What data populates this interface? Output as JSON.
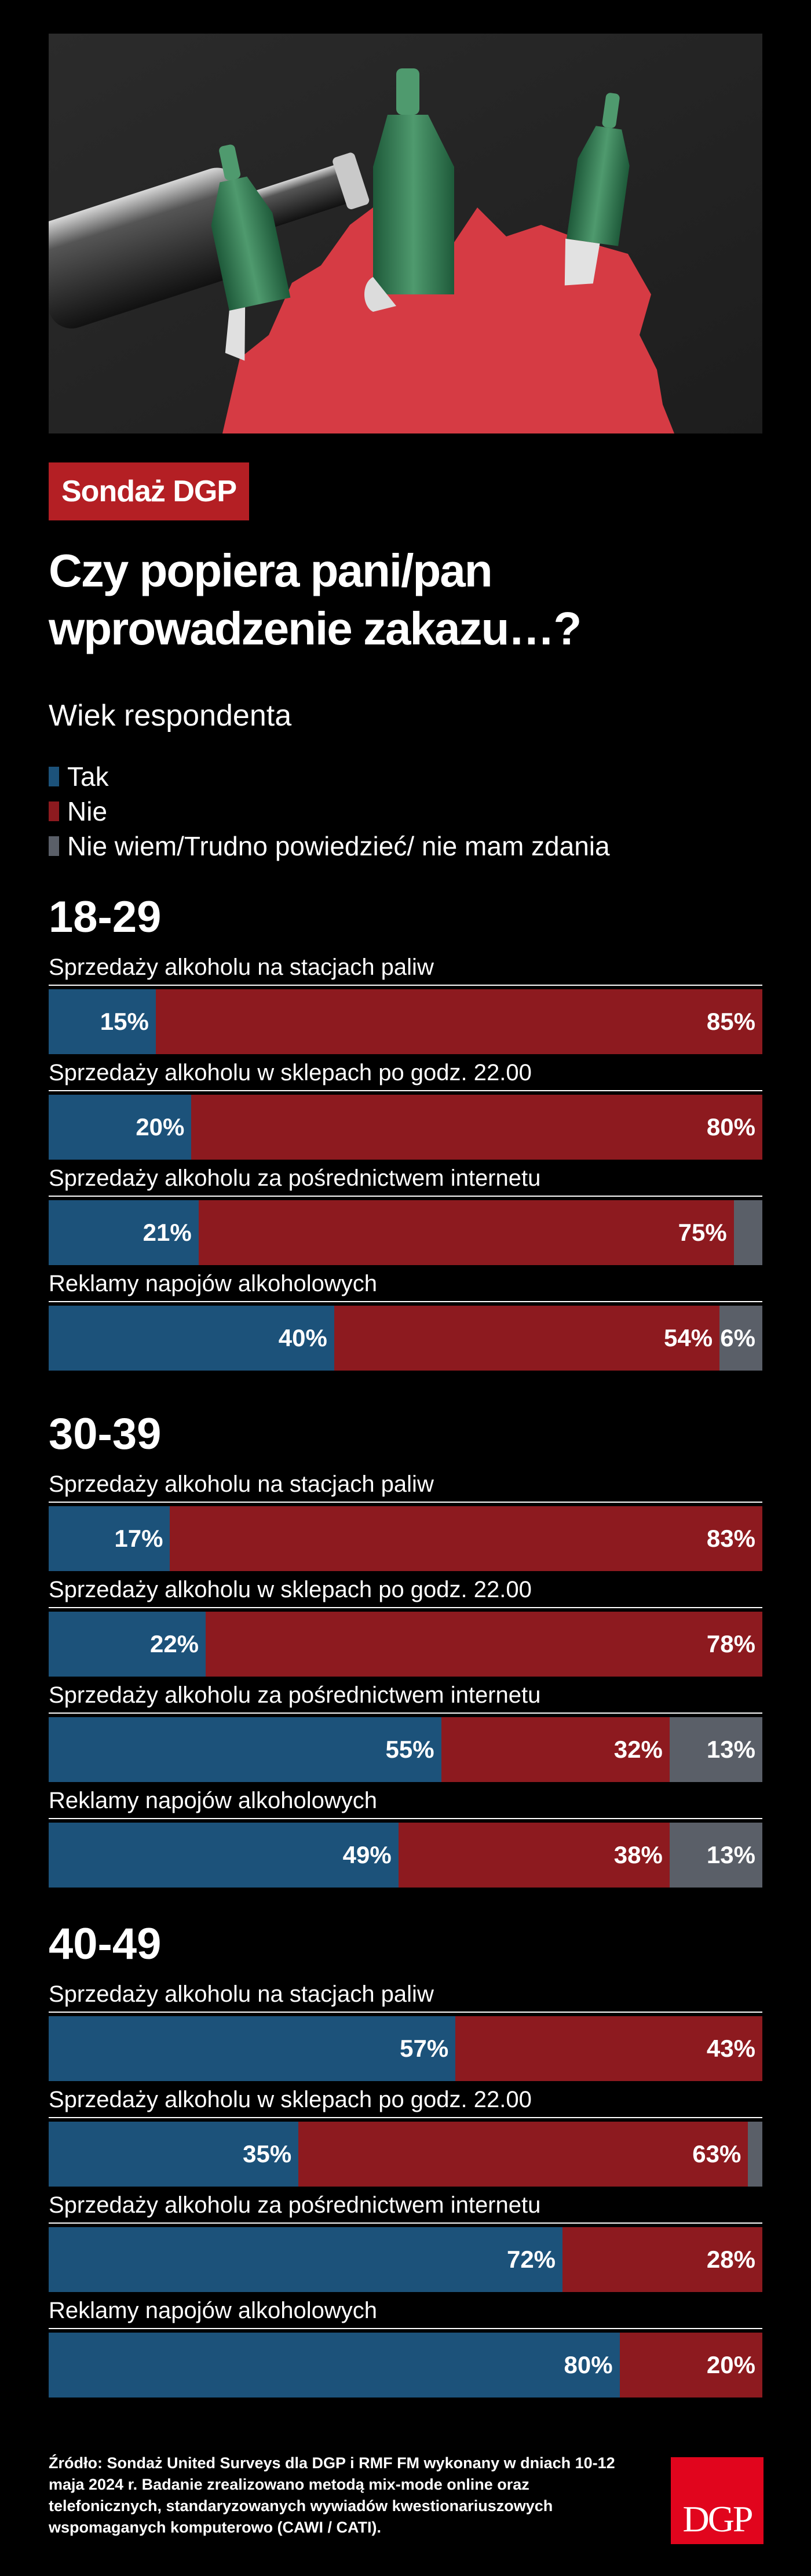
{
  "header": {
    "badge": "Sondaż DGP",
    "title": "Czy popiera pani/pan wprowadzenie zakazu…?",
    "subtitle": "Wiek respondenta"
  },
  "colors": {
    "tak": "#1c527a",
    "nie": "#8d1a1f",
    "niewiem": "#5a5f68",
    "badge": "#b41f24",
    "logo": "#e1051d"
  },
  "legend": [
    {
      "key": "tak",
      "label": "Tak"
    },
    {
      "key": "nie",
      "label": "Nie"
    },
    {
      "key": "niewiem",
      "label": "Nie wiem/Trudno powiedzieć/ nie mam zdania"
    }
  ],
  "chart_data": {
    "type": "bar",
    "orientation": "horizontal",
    "stacked": true,
    "title": "Czy popiera pani/pan wprowadzenie zakazu…?",
    "subtitle": "Wiek respondenta",
    "xlim": [
      0,
      100
    ],
    "legend_placement": "top-left",
    "grid": false,
    "series_names": [
      "Tak",
      "Nie",
      "Nie wiem/Trudno powiedzieć/ nie mam zdania"
    ],
    "groups": [
      {
        "name": "18-29",
        "questions": [
          {
            "label": "Sprzedaży alkoholu na stacjach paliw",
            "values": [
              15,
              85,
              0
            ],
            "labels": [
              "15%",
              "85%",
              ""
            ]
          },
          {
            "label": "Sprzedaży alkoholu w sklepach po godz. 22.00",
            "values": [
              20,
              80,
              0
            ],
            "labels": [
              "20%",
              "80%",
              ""
            ]
          },
          {
            "label": "Sprzedaży alkoholu za pośrednictwem internetu",
            "values": [
              21,
              75,
              4
            ],
            "labels": [
              "21%",
              "75%",
              ""
            ]
          },
          {
            "label": "Reklamy napojów alkoholowych",
            "values": [
              40,
              54,
              6
            ],
            "labels": [
              "40%",
              "54%",
              "6%"
            ]
          }
        ]
      },
      {
        "name": "30-39",
        "questions": [
          {
            "label": "Sprzedaży alkoholu na stacjach paliw",
            "values": [
              17,
              83,
              0
            ],
            "labels": [
              "17%",
              "83%",
              ""
            ]
          },
          {
            "label": "Sprzedaży alkoholu w sklepach po godz. 22.00",
            "values": [
              22,
              78,
              0
            ],
            "labels": [
              "22%",
              "78%",
              ""
            ]
          },
          {
            "label": "Sprzedaży alkoholu za pośrednictwem internetu",
            "values": [
              55,
              32,
              13
            ],
            "labels": [
              "55%",
              "32%",
              "13%"
            ]
          },
          {
            "label": "Reklamy napojów alkoholowych",
            "values": [
              49,
              38,
              13
            ],
            "labels": [
              "49%",
              "38%",
              "13%"
            ]
          }
        ]
      },
      {
        "name": "40-49",
        "questions": [
          {
            "label": "Sprzedaży alkoholu na stacjach paliw",
            "values": [
              57,
              43,
              0
            ],
            "labels": [
              "57%",
              "43%",
              ""
            ]
          },
          {
            "label": "Sprzedaży alkoholu w sklepach po godz. 22.00",
            "values": [
              35,
              63,
              2
            ],
            "labels": [
              "35%",
              "63%",
              ""
            ]
          },
          {
            "label": "Sprzedaży alkoholu za pośrednictwem internetu",
            "values": [
              72,
              28,
              0
            ],
            "labels": [
              "72%",
              "28%",
              ""
            ]
          },
          {
            "label": "Reklamy napojów alkoholowych",
            "values": [
              80,
              20,
              0
            ],
            "labels": [
              "80%",
              "20%",
              ""
            ]
          }
        ]
      }
    ]
  },
  "footer": {
    "source": "Źródło: Sondaż United Surveys dla DGP i RMF FM wykonany w dniach 10-12 maja 2024 r. Badanie zrealizowano metodą mix-mode online oraz telefonicznych, standaryzowanych wywiadów kwestionariuszowych wspomaganych komputerowo (CAWI / CATI).",
    "logo_text": "DGP"
  }
}
